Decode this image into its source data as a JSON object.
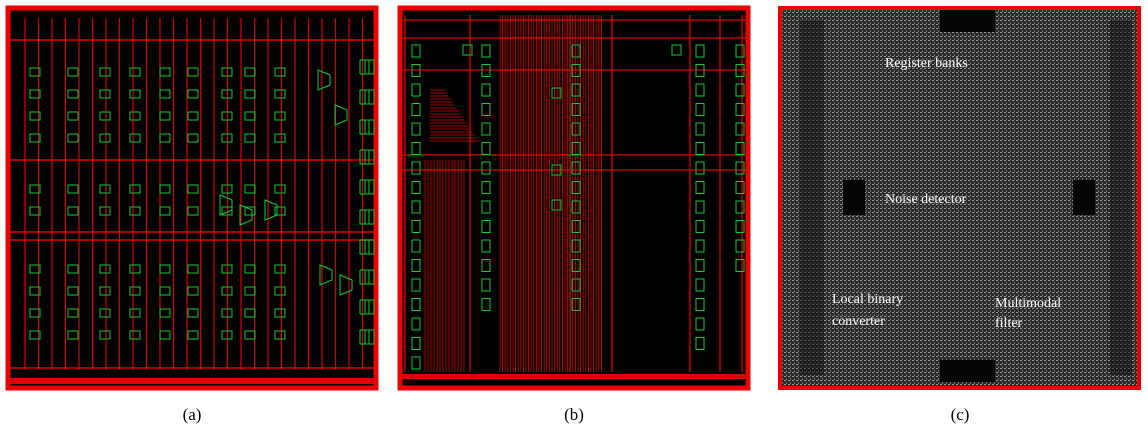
{
  "panels": [
    {
      "caption": "(a)"
    },
    {
      "caption": "(b)"
    },
    {
      "caption": "(c)",
      "labels": [
        {
          "lines": [
            "Register banks"
          ]
        },
        {
          "lines": [
            "Noise detector"
          ]
        },
        {
          "lines": [
            "Local binary",
            "converter"
          ]
        },
        {
          "lines": [
            "Multimodal",
            "filter"
          ]
        }
      ]
    }
  ]
}
